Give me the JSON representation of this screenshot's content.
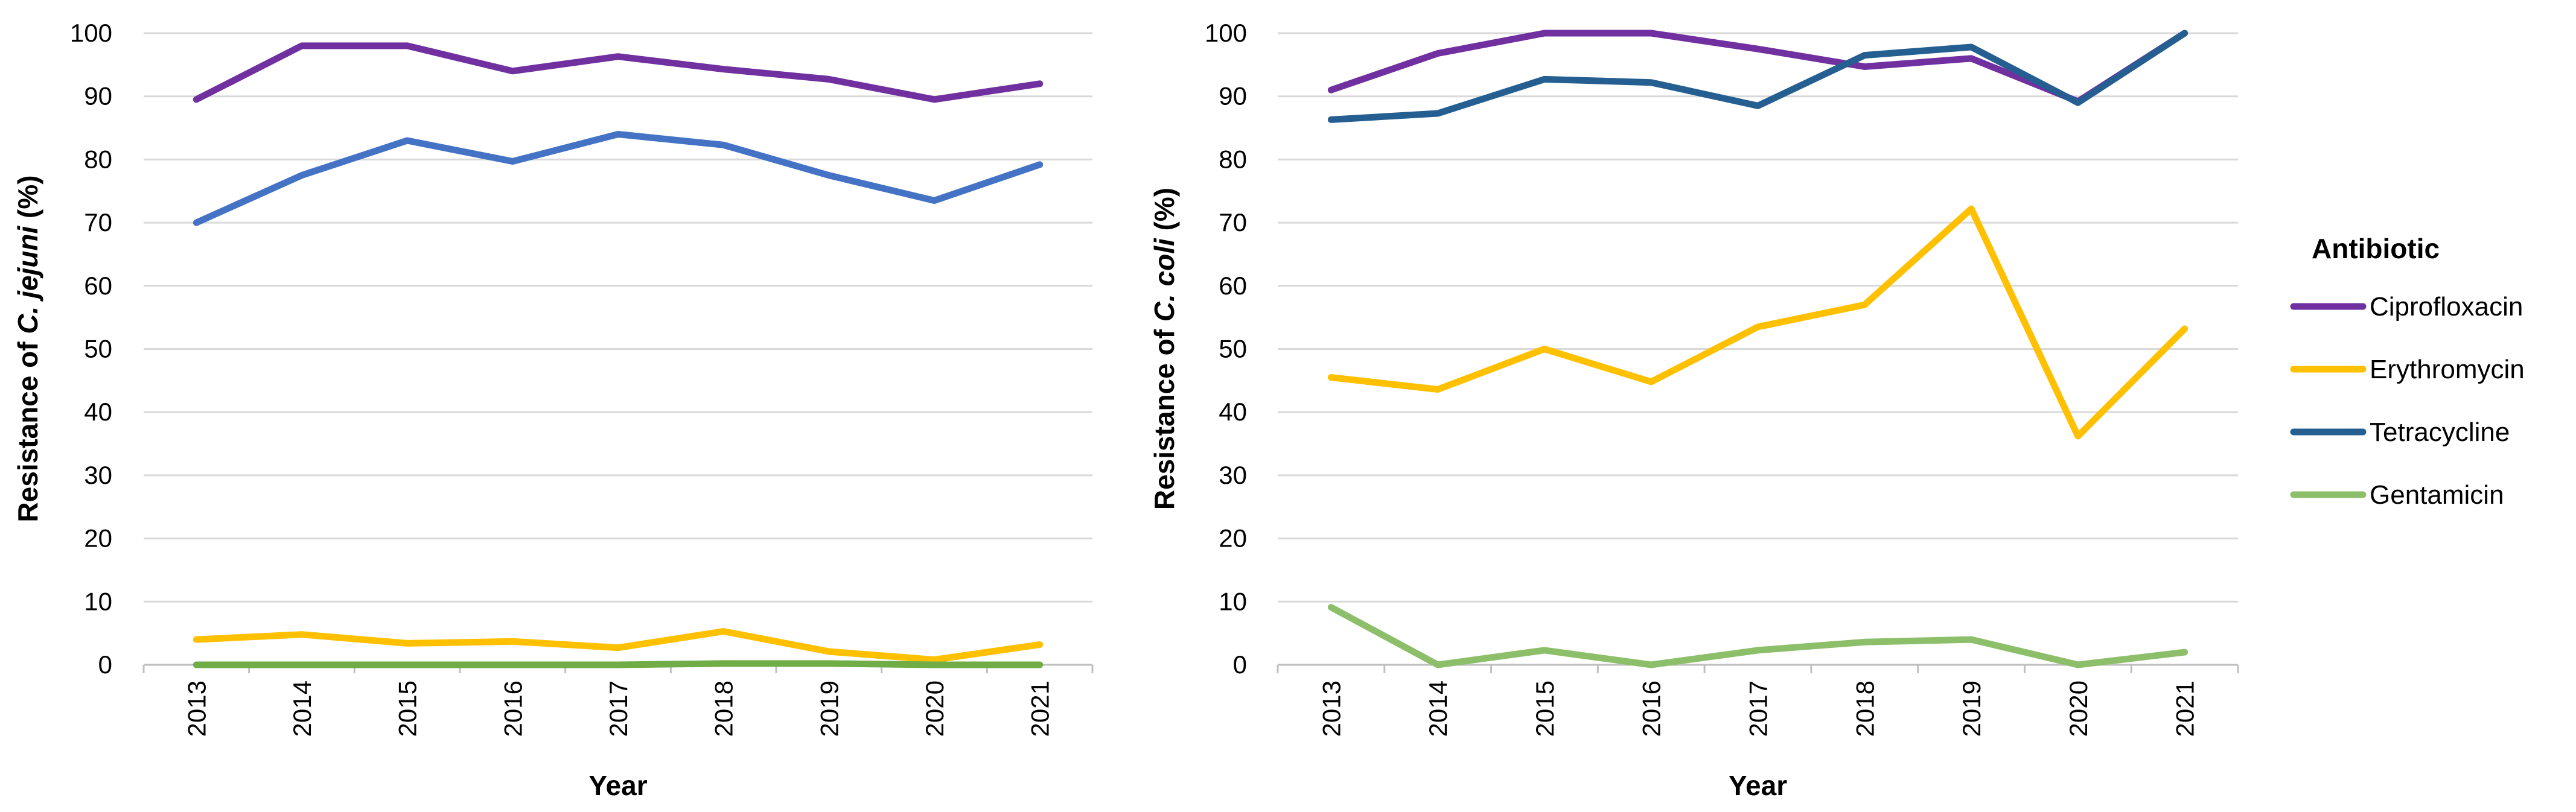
{
  "chart_data": [
    {
      "type": "line",
      "ylabel_prefix": "Resistance of ",
      "ylabel_species": "C. jejuni",
      "ylabel_suffix": " (%)",
      "xlabel": "Year",
      "ylim": [
        0,
        100
      ],
      "yticks": [
        "0",
        "10",
        "20",
        "30",
        "40",
        "50",
        "60",
        "70",
        "80",
        "90",
        "100"
      ],
      "categories": [
        "2013",
        "2014",
        "2015",
        "2016",
        "2017",
        "2018",
        "2019",
        "2020",
        "2021"
      ],
      "grid": true,
      "series": [
        {
          "name": "Ciprofloxacin",
          "color": "#7030a0",
          "values": [
            89.5,
            98,
            98,
            94,
            96.3,
            94.3,
            92.7,
            89.5,
            92
          ]
        },
        {
          "name": "Tetracycline",
          "color": "#4472c4",
          "values": [
            70,
            77.5,
            83,
            79.7,
            84,
            82.3,
            77.5,
            73.5,
            79.2
          ]
        },
        {
          "name": "Erythromycin",
          "color": "#ffc000",
          "values": [
            4,
            4.8,
            3.4,
            3.7,
            2.7,
            5.3,
            2.1,
            0.8,
            3.2
          ]
        },
        {
          "name": "Gentamicin",
          "color": "#70ad47",
          "values": [
            0,
            0,
            0,
            0,
            0,
            0.2,
            0.2,
            0,
            0
          ]
        }
      ]
    },
    {
      "type": "line",
      "ylabel_prefix": "Resistance of ",
      "ylabel_species": "C. coli",
      "ylabel_suffix": " (%)",
      "xlabel": "Year",
      "ylim": [
        0,
        100
      ],
      "yticks": [
        "0",
        "10",
        "20",
        "30",
        "40",
        "50",
        "60",
        "70",
        "80",
        "90",
        "100"
      ],
      "categories": [
        "2013",
        "2014",
        "2015",
        "2016",
        "2017",
        "2018",
        "2019",
        "2020",
        "2021"
      ],
      "grid": true,
      "series": [
        {
          "name": "Ciprofloxacin",
          "color": "#7030a0",
          "values": [
            91,
            96.8,
            100,
            100,
            97.5,
            94.7,
            96,
            89.2,
            100
          ]
        },
        {
          "name": "Tetracycline",
          "color": "#255e91",
          "values": [
            86.3,
            87.3,
            92.7,
            92.2,
            88.5,
            96.5,
            97.8,
            89,
            100
          ]
        },
        {
          "name": "Erythromycin",
          "color": "#ffc000",
          "values": [
            45.5,
            43.6,
            50,
            44.8,
            53.5,
            57,
            72.2,
            36.2,
            53.2
          ]
        },
        {
          "name": "Gentamicin",
          "color": "#8dbf6b",
          "values": [
            9.1,
            0,
            2.3,
            0,
            2.3,
            3.6,
            4,
            0,
            2
          ]
        }
      ]
    }
  ],
  "legend": {
    "title": "Antibiotic",
    "items": [
      {
        "name": "Ciprofloxacin",
        "color": "#7030a0"
      },
      {
        "name": "Erythromycin",
        "color": "#ffc000"
      },
      {
        "name": "Tetracycline",
        "color": "#255e91"
      },
      {
        "name": "Gentamicin",
        "color": "#8dbf6b"
      }
    ]
  }
}
